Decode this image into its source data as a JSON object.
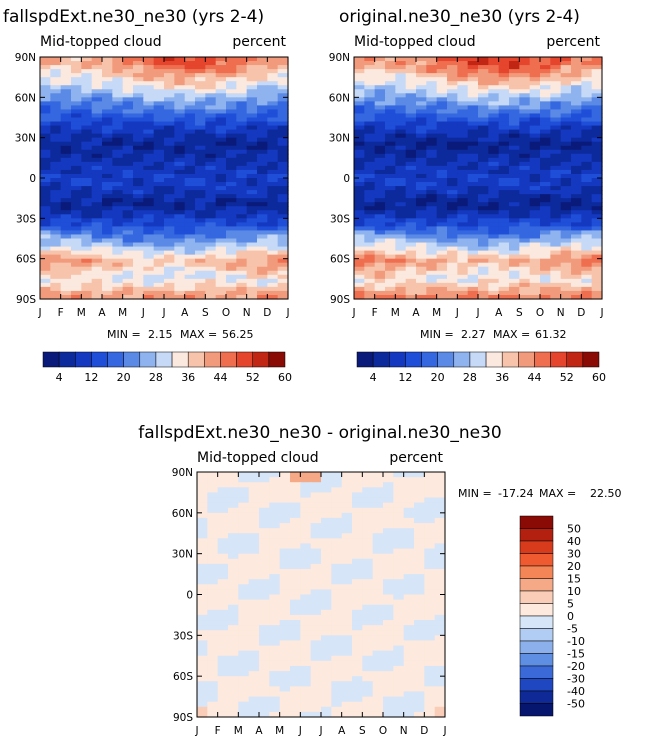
{
  "chart_data": [
    {
      "type": "heatmap",
      "title": "fallspdExt.ne30_ne30 (yrs 2-4)",
      "subtitle_left": "Mid-topped cloud",
      "subtitle_right": "percent",
      "x_ticks": [
        "J",
        "F",
        "M",
        "A",
        "M",
        "J",
        "J",
        "A",
        "S",
        "O",
        "N",
        "D",
        "J"
      ],
      "y_ticks": [
        "90N",
        "60N",
        "30N",
        "0",
        "30S",
        "60S",
        "90S"
      ],
      "ylim": [
        -90,
        90
      ],
      "stats_min_label": "MIN =",
      "stats_min": "2.15",
      "stats_max_label": "MAX =",
      "stats_max": "56.25",
      "colorbar_labels": [
        "4",
        "12",
        "20",
        "28",
        "36",
        "44",
        "52",
        "60"
      ],
      "lat_profile": [
        {
          "lat": 85,
          "value": 44
        },
        {
          "lat": 70,
          "value": 33
        },
        {
          "lat": 55,
          "value": 22
        },
        {
          "lat": 40,
          "value": 12
        },
        {
          "lat": 25,
          "value": 5
        },
        {
          "lat": 10,
          "value": 9
        },
        {
          "lat": -5,
          "value": 11
        },
        {
          "lat": -20,
          "value": 5
        },
        {
          "lat": -35,
          "value": 14
        },
        {
          "lat": -50,
          "value": 28
        },
        {
          "lat": -62,
          "value": 40
        },
        {
          "lat": -75,
          "value": 32
        },
        {
          "lat": -88,
          "value": 42
        }
      ]
    },
    {
      "type": "heatmap",
      "title": "original.ne30_ne30 (yrs 2-4)",
      "subtitle_left": "Mid-topped cloud",
      "subtitle_right": "percent",
      "x_ticks": [
        "J",
        "F",
        "M",
        "A",
        "M",
        "J",
        "J",
        "A",
        "S",
        "O",
        "N",
        "D",
        "J"
      ],
      "y_ticks": [
        "90N",
        "60N",
        "30N",
        "0",
        "30S",
        "60S",
        "90S"
      ],
      "ylim": [
        -90,
        90
      ],
      "stats_min_label": "MIN =",
      "stats_min": "2.27",
      "stats_max_label": "MAX =",
      "stats_max": "61.32",
      "colorbar_labels": [
        "4",
        "12",
        "20",
        "28",
        "36",
        "44",
        "52",
        "60"
      ],
      "lat_profile": [
        {
          "lat": 85,
          "value": 46
        },
        {
          "lat": 70,
          "value": 34
        },
        {
          "lat": 55,
          "value": 23
        },
        {
          "lat": 40,
          "value": 12
        },
        {
          "lat": 25,
          "value": 4
        },
        {
          "lat": 10,
          "value": 9
        },
        {
          "lat": -5,
          "value": 11
        },
        {
          "lat": -20,
          "value": 4
        },
        {
          "lat": -35,
          "value": 14
        },
        {
          "lat": -50,
          "value": 30
        },
        {
          "lat": -62,
          "value": 42
        },
        {
          "lat": -75,
          "value": 33
        },
        {
          "lat": -88,
          "value": 44
        }
      ]
    },
    {
      "type": "heatmap",
      "title": "fallspdExt.ne30_ne30 - original.ne30_ne30",
      "subtitle_left": "Mid-topped cloud",
      "subtitle_right": "percent",
      "x_ticks": [
        "J",
        "F",
        "M",
        "A",
        "M",
        "J",
        "J",
        "A",
        "S",
        "O",
        "N",
        "D",
        "J"
      ],
      "y_ticks": [
        "90N",
        "60N",
        "30N",
        "0",
        "30S",
        "60S",
        "90S"
      ],
      "ylim": [
        -90,
        90
      ],
      "stats_min_label": "MIN =",
      "stats_min": "-17.24",
      "stats_max_label": "MAX =",
      "stats_max": "22.50",
      "colorbar_labels": [
        "50",
        "40",
        "30",
        "20",
        "15",
        "10",
        "5",
        "0",
        "-5",
        "-10",
        "-15",
        "-20",
        "-30",
        "-40",
        "-50"
      ]
    }
  ],
  "palettes": {
    "absolute": [
      "#0a1a7a",
      "#0d2a9c",
      "#1438c0",
      "#1f4ed8",
      "#3568e0",
      "#5b8ae6",
      "#8fb3ef",
      "#c6d9f6",
      "#fbe8de",
      "#f7c3ab",
      "#f29b7c",
      "#ee6e4f",
      "#e4452c",
      "#c12513",
      "#8a0b06"
    ],
    "difference": [
      "#8a0b06",
      "#b3200f",
      "#d83a1c",
      "#ef5a30",
      "#f38556",
      "#f6a987",
      "#f9cdb7",
      "#fde9dd",
      "#d6e5f8",
      "#b2cdf3",
      "#8bb0ec",
      "#5f8fe3",
      "#3b6ad8",
      "#1f47c2",
      "#0f2a96",
      "#06166e"
    ]
  }
}
